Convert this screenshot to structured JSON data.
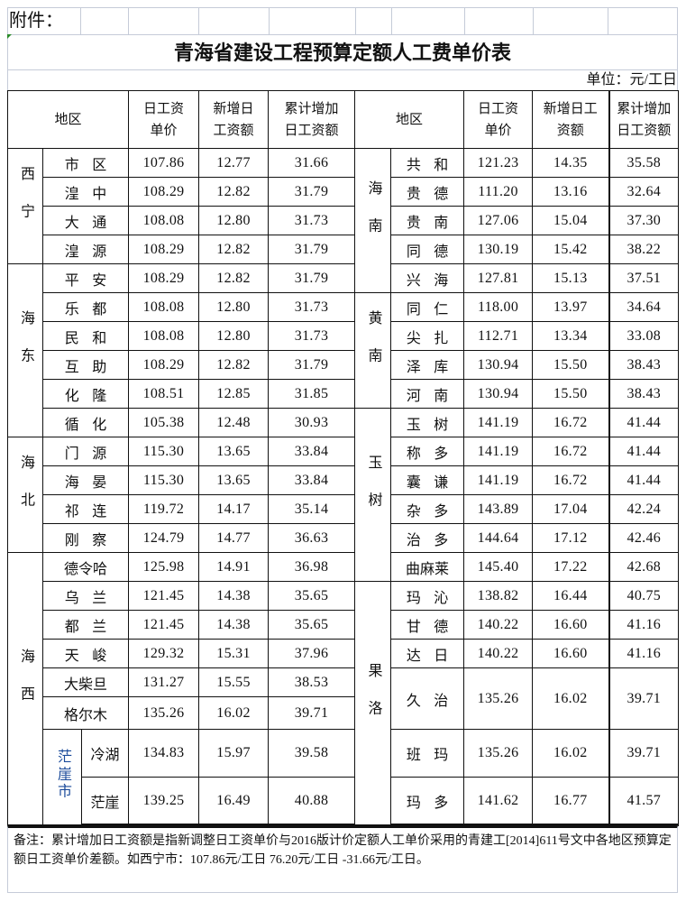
{
  "attachment_label": "附件：",
  "title": "青海省建设工程预算定额人工费单价表",
  "unit": "单位：元/工日",
  "headers": {
    "region": "地区",
    "daily_wage": "日工资\n单价",
    "new_increase": "新增日\n工资额",
    "cumulative_increase": "累计增加\n日工资额",
    "region_right": "地区",
    "daily_wage_right": "日工资\n单价",
    "new_increase_right": "新增日工\n资额",
    "cumulative_increase_right": "累计增加\n日工资额"
  },
  "left_groups": [
    {
      "name": "西宁",
      "rows": [
        {
          "name": "市区",
          "values": [
            "107.86",
            "12.77",
            "31.66"
          ]
        },
        {
          "name": "湟中",
          "values": [
            "108.29",
            "12.82",
            "31.79"
          ]
        },
        {
          "name": "大通",
          "values": [
            "108.08",
            "12.80",
            "31.73"
          ]
        },
        {
          "name": "湟源",
          "values": [
            "108.29",
            "12.82",
            "31.79"
          ]
        }
      ]
    },
    {
      "name": "海东",
      "rows": [
        {
          "name": "平安",
          "values": [
            "108.29",
            "12.82",
            "31.79"
          ]
        },
        {
          "name": "乐都",
          "values": [
            "108.08",
            "12.80",
            "31.73"
          ]
        },
        {
          "name": "民和",
          "values": [
            "108.08",
            "12.80",
            "31.73"
          ]
        },
        {
          "name": "互助",
          "values": [
            "108.29",
            "12.82",
            "31.79"
          ]
        },
        {
          "name": "化隆",
          "values": [
            "108.51",
            "12.85",
            "31.85"
          ]
        },
        {
          "name": "循化",
          "values": [
            "105.38",
            "12.48",
            "30.93"
          ]
        }
      ]
    },
    {
      "name": "海北",
      "rows": [
        {
          "name": "门源",
          "values": [
            "115.30",
            "13.65",
            "33.84"
          ]
        },
        {
          "name": "海晏",
          "values": [
            "115.30",
            "13.65",
            "33.84"
          ]
        },
        {
          "name": "祁连",
          "values": [
            "119.72",
            "14.17",
            "35.14"
          ]
        },
        {
          "name": "刚察",
          "values": [
            "124.79",
            "14.77",
            "36.63"
          ]
        }
      ]
    },
    {
      "name": "海西",
      "rows": [
        {
          "name": "德令哈",
          "values": [
            "125.98",
            "14.91",
            "36.98"
          ]
        },
        {
          "name": "乌兰",
          "values": [
            "121.45",
            "14.38",
            "35.65"
          ]
        },
        {
          "name": "都兰",
          "values": [
            "121.45",
            "14.38",
            "35.65"
          ]
        },
        {
          "name": "天峻",
          "values": [
            "129.32",
            "15.31",
            "37.96"
          ]
        },
        {
          "name": "大柴旦",
          "values": [
            "131.27",
            "15.55",
            "38.53"
          ]
        },
        {
          "name": "格尔木",
          "values": [
            "135.26",
            "16.02",
            "39.71"
          ]
        },
        {
          "sub": "茫崖市",
          "name": "冷湖",
          "values": [
            "134.83",
            "15.97",
            "39.58"
          ]
        },
        {
          "sub": "茫崖市",
          "name": "茫崖",
          "values": [
            "139.25",
            "16.49",
            "40.88"
          ]
        }
      ]
    }
  ],
  "right_groups": [
    {
      "name": "海南",
      "rows": [
        {
          "name": "共和",
          "values": [
            "121.23",
            "14.35",
            "35.58"
          ]
        },
        {
          "name": "贵德",
          "values": [
            "111.20",
            "13.16",
            "32.64"
          ]
        },
        {
          "name": "贵南",
          "values": [
            "127.06",
            "15.04",
            "37.30"
          ]
        },
        {
          "name": "同德",
          "values": [
            "130.19",
            "15.42",
            "38.22"
          ]
        },
        {
          "name": "兴海",
          "values": [
            "127.81",
            "15.13",
            "37.51"
          ]
        }
      ]
    },
    {
      "name": "黄南",
      "rows": [
        {
          "name": "同仁",
          "values": [
            "118.00",
            "13.97",
            "34.64"
          ]
        },
        {
          "name": "尖扎",
          "values": [
            "112.71",
            "13.34",
            "33.08"
          ]
        },
        {
          "name": "泽库",
          "values": [
            "130.94",
            "15.50",
            "38.43"
          ]
        },
        {
          "name": "河南",
          "values": [
            "130.94",
            "15.50",
            "38.43"
          ]
        }
      ]
    },
    {
      "name": "玉树",
      "rows": [
        {
          "name": "玉树",
          "values": [
            "141.19",
            "16.72",
            "41.44"
          ]
        },
        {
          "name": "称多",
          "values": [
            "141.19",
            "16.72",
            "41.44"
          ]
        },
        {
          "name": "囊谦",
          "values": [
            "141.19",
            "16.72",
            "41.44"
          ]
        },
        {
          "name": "杂多",
          "values": [
            "143.89",
            "17.04",
            "42.24"
          ]
        },
        {
          "name": "治多",
          "values": [
            "144.64",
            "17.12",
            "42.46"
          ]
        },
        {
          "name": "曲麻莱",
          "values": [
            "145.40",
            "17.22",
            "42.68"
          ]
        }
      ]
    },
    {
      "name": "果洛",
      "rows": [
        {
          "name": "玛沁",
          "values": [
            "138.82",
            "16.44",
            "40.75"
          ]
        },
        {
          "name": "甘德",
          "values": [
            "140.22",
            "16.60",
            "41.16"
          ]
        },
        {
          "name": "达日",
          "values": [
            "140.22",
            "16.60",
            "41.16"
          ]
        },
        {
          "name": "久治",
          "values": [
            "135.26",
            "16.02",
            "39.71"
          ]
        },
        {
          "name": "班玛",
          "values": [
            "135.26",
            "16.02",
            "39.71"
          ]
        },
        {
          "name": "玛多",
          "values": [
            "141.62",
            "16.77",
            "41.57"
          ]
        }
      ]
    }
  ],
  "note": "备注：累计增加日工资额是指新调整日工资单价与2016版计价定额人工单价采用的青建工[2014]611号文中各地区预算定额日工资单价差额。如西宁市：107.86元/工日 76.20元/工日 -31.66元/工日。"
}
